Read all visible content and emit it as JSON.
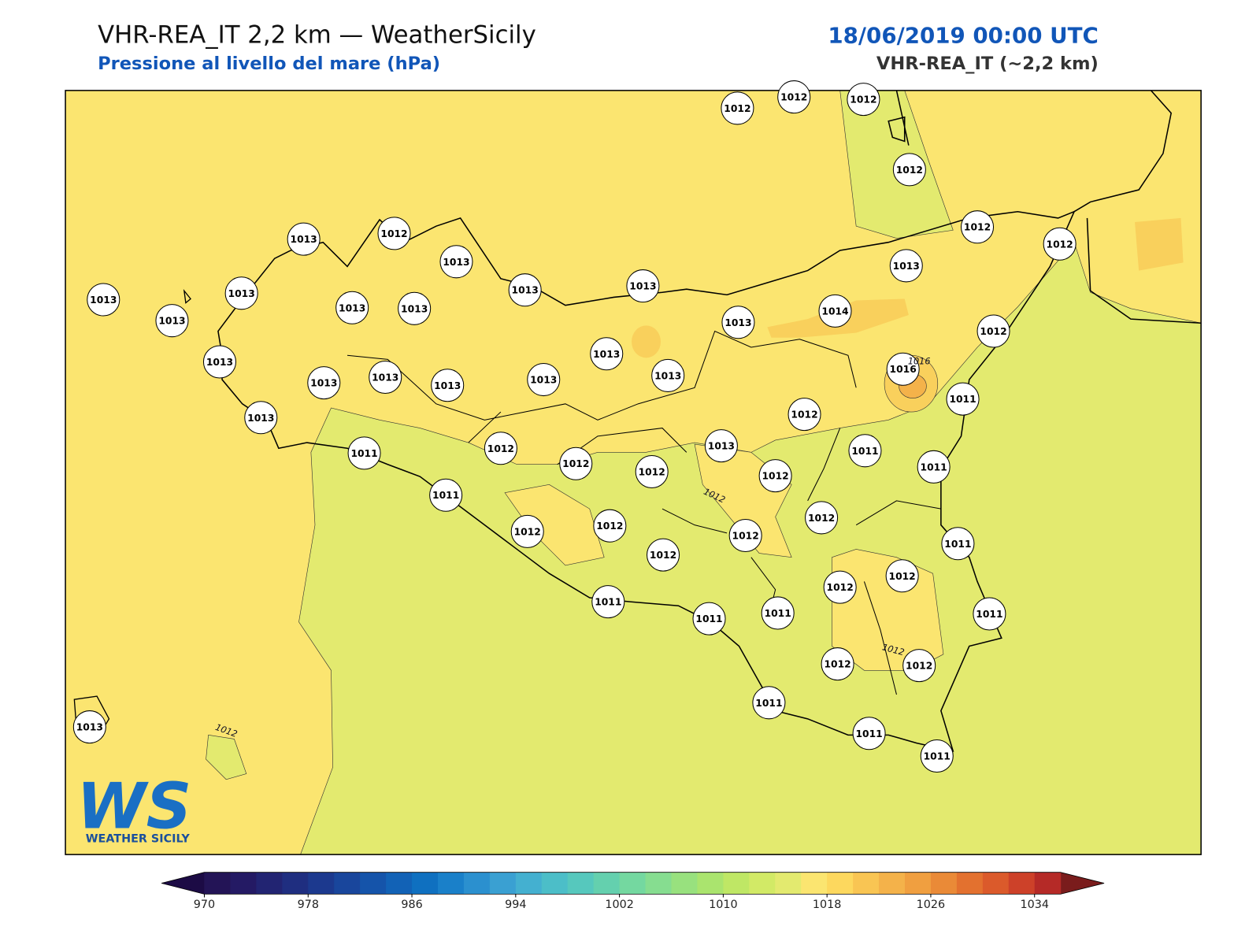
{
  "header": {
    "title": "VHR-REA_IT 2,2 km — WeatherSicily",
    "subtitle": "Pressione al livello del mare (hPa)",
    "datetime": "18/06/2019 00:00 UTC",
    "model": "VHR-REA_IT (~2,2 km)"
  },
  "map": {
    "stations": [
      1012,
      1012,
      1012,
      1012,
      1012,
      1012,
      1013,
      1013,
      1012,
      1013,
      1013,
      1013,
      1013,
      1013,
      1013,
      1013,
      1013,
      1013,
      1014,
      1012,
      1013,
      1013,
      1013,
      1013,
      1013,
      1013,
      1013,
      1016,
      1011,
      1013,
      1012,
      1013,
      1011,
      1011,
      1011,
      1012,
      1012,
      1012,
      1012,
      1011,
      1012,
      1012,
      1012,
      1012,
      1011,
      1012,
      1012,
      1012,
      1011,
      1011,
      1011,
      1011,
      1012,
      1012,
      1011,
      1011,
      1011,
      1013
    ],
    "contour_labels": [
      "1012",
      "1012",
      "1012",
      "1016"
    ],
    "logo": {
      "mark": "WS",
      "name": "WEATHER SICILY"
    }
  },
  "colorbar": {
    "lim": [
      970,
      1036
    ],
    "ticks": [
      970,
      978,
      986,
      994,
      1002,
      1010,
      1018,
      1026,
      1034
    ],
    "under": "#1c0b45",
    "over": "#7a1c1c",
    "colors": [
      "#231456",
      "#241a64",
      "#222472",
      "#1f2e80",
      "#1c398e",
      "#19469c",
      "#1554aa",
      "#1262b6",
      "#0f70c0",
      "#1a80c9",
      "#2b90cf",
      "#3aa0d2",
      "#44b0d0",
      "#4cbec8",
      "#56c8bd",
      "#64d0ae",
      "#74d8a0",
      "#86dd90",
      "#98e17e",
      "#aae46e",
      "#bfe765",
      "#d2ea66",
      "#e3ea6f",
      "#fbe570",
      "#fdd85e",
      "#f9c553",
      "#f4b24a",
      "#f09f40",
      "#ea8a37",
      "#e3712f",
      "#db5a2b",
      "#cd4129",
      "#b52a27"
    ]
  }
}
